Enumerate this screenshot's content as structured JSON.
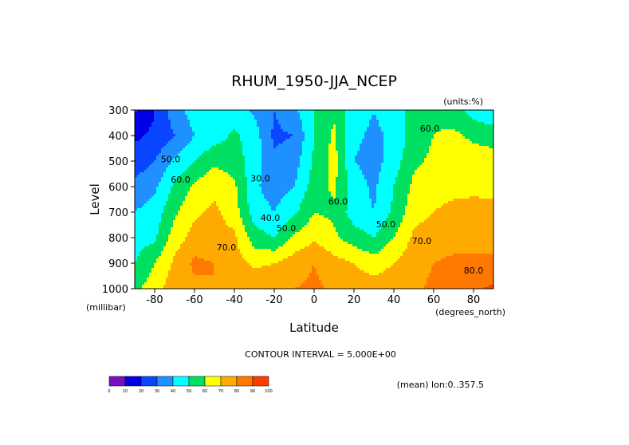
{
  "chart_data": {
    "type": "heatmap",
    "title": "RHUM_1950-JJA_NCEP",
    "units_label": "(units:%)",
    "xlabel": "Latitude",
    "ylabel": "Level",
    "x_unit_label": "(degrees_north)",
    "y_unit_label": "(millibar)",
    "contour_interval_text": "CONTOUR INTERVAL = 5.000E+00",
    "mean_text": "(mean) lon:0..357.5",
    "xlim": [
      -90,
      90
    ],
    "ylim": [
      300,
      1000
    ],
    "y_inverted": true,
    "x_ticks": [
      -80,
      -60,
      -40,
      -20,
      0,
      20,
      40,
      60,
      80
    ],
    "y_ticks": [
      300,
      400,
      500,
      600,
      700,
      800,
      900,
      1000
    ],
    "color_levels": [
      0,
      10,
      20,
      30,
      40,
      50,
      60,
      70,
      80,
      90,
      100
    ],
    "colors": [
      "#7B0FBF",
      "#0000E6",
      "#0A46FF",
      "#1E90FF",
      "#00FFFF",
      "#00E060",
      "#FFFF00",
      "#FFAA00",
      "#FF7800",
      "#FF3C00"
    ],
    "contour_labels": [
      {
        "text": "50.0",
        "lat": -72,
        "lev": 505
      },
      {
        "text": "60.0",
        "lat": -67,
        "lev": 585
      },
      {
        "text": "70.0",
        "lat": -44,
        "lev": 850
      },
      {
        "text": "30.0",
        "lat": -27,
        "lev": 580
      },
      {
        "text": "40.0",
        "lat": -22,
        "lev": 735
      },
      {
        "text": "50.0",
        "lat": -14,
        "lev": 775
      },
      {
        "text": "60.0",
        "lat": 12,
        "lev": 670
      },
      {
        "text": "50.0",
        "lat": 36,
        "lev": 760
      },
      {
        "text": "70.0",
        "lat": 54,
        "lev": 825
      },
      {
        "text": "60.0",
        "lat": 58,
        "lev": 385
      },
      {
        "text": "80.0",
        "lat": 80,
        "lev": 940
      }
    ],
    "lat": [
      -90,
      -80,
      -70,
      -60,
      -50,
      -40,
      -30,
      -20,
      -10,
      0,
      10,
      20,
      30,
      40,
      50,
      60,
      70,
      80,
      90
    ],
    "lev": [
      300,
      400,
      500,
      600,
      700,
      800,
      900,
      1000
    ],
    "rhum": [
      [
        8,
        20,
        35,
        45,
        48,
        45,
        38,
        30,
        38,
        50,
        58,
        45,
        40,
        45,
        55,
        58,
        55,
        45,
        42
      ],
      [
        18,
        22,
        30,
        40,
        45,
        52,
        45,
        28,
        30,
        50,
        62,
        42,
        38,
        42,
        55,
        60,
        62,
        58,
        55
      ],
      [
        25,
        30,
        42,
        50,
        58,
        55,
        45,
        32,
        35,
        52,
        64,
        40,
        36,
        45,
        58,
        62,
        65,
        65,
        65
      ],
      [
        32,
        38,
        52,
        62,
        68,
        62,
        42,
        35,
        40,
        55,
        62,
        45,
        38,
        50,
        62,
        67,
        68,
        68,
        68
      ],
      [
        40,
        45,
        58,
        68,
        72,
        65,
        45,
        40,
        48,
        60,
        58,
        45,
        40,
        52,
        66,
        70,
        72,
        73,
        72
      ],
      [
        45,
        48,
        65,
        74,
        74,
        72,
        55,
        50,
        62,
        68,
        62,
        55,
        50,
        60,
        72,
        76,
        76,
        76,
        76
      ],
      [
        50,
        60,
        72,
        82,
        80,
        74,
        68,
        70,
        75,
        80,
        74,
        70,
        65,
        70,
        76,
        80,
        82,
        82,
        82
      ],
      [
        58,
        65,
        76,
        78,
        80,
        80,
        78,
        78,
        80,
        82,
        78,
        75,
        75,
        76,
        78,
        82,
        84,
        88,
        92
      ]
    ]
  }
}
